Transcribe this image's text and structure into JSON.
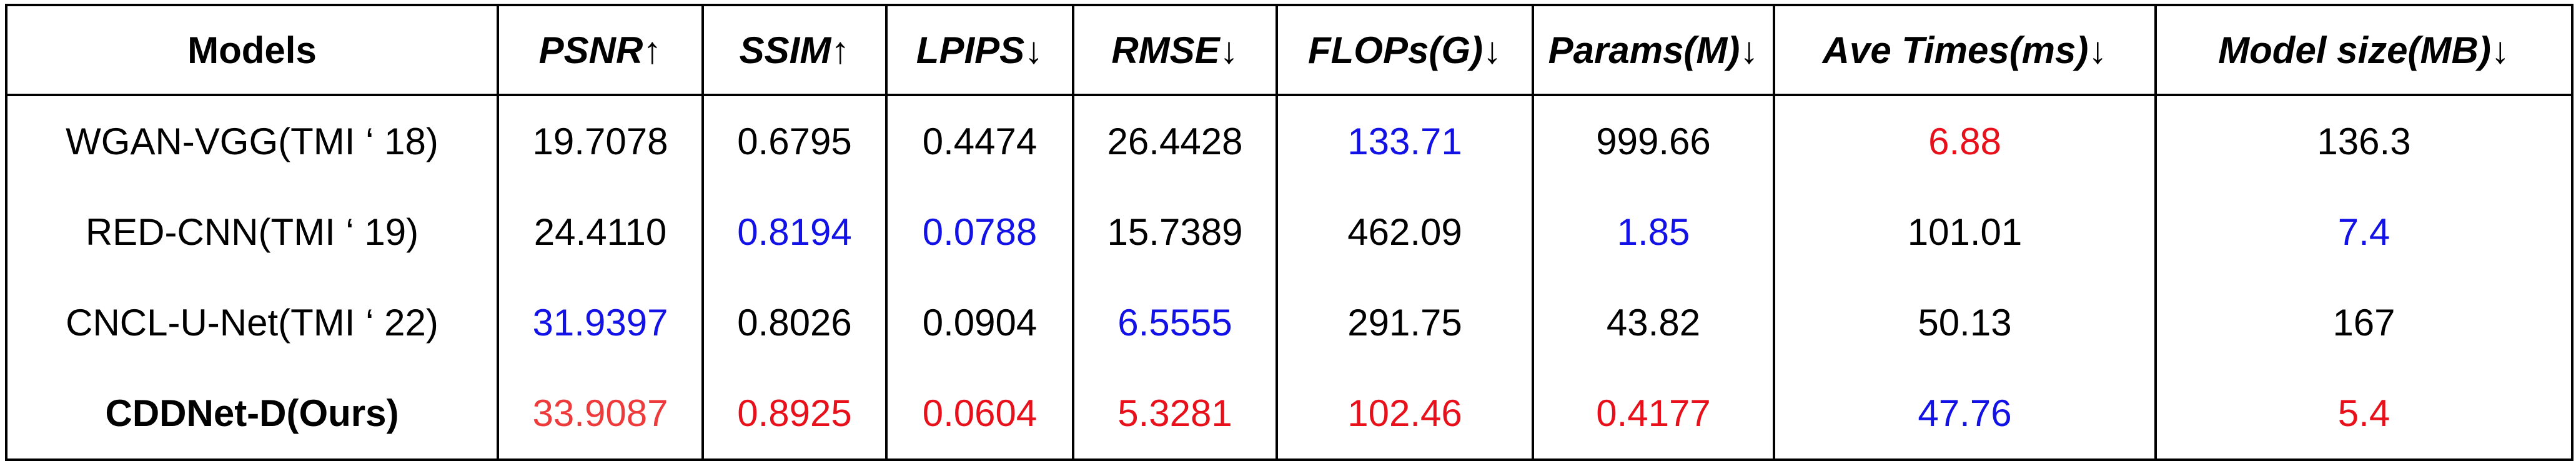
{
  "chart_data": {
    "type": "table",
    "title": "",
    "columns": [
      {
        "label": "Models",
        "italic": false
      },
      {
        "label": "PSNR↑",
        "italic": true
      },
      {
        "label": "SSIM↑",
        "italic": true
      },
      {
        "label": "LPIPS↓",
        "italic": true
      },
      {
        "label": "RMSE↓",
        "italic": true
      },
      {
        "label": "FLOPs(G)↓",
        "italic": true
      },
      {
        "label": "Params(M)↓",
        "italic": true
      },
      {
        "label": "Ave Times(ms)↓",
        "italic": true
      },
      {
        "label": "Model size(MB)↓",
        "italic": true
      }
    ],
    "rows": [
      {
        "model": "WGAN-VGG(TMI ‘ 18)",
        "bold": false,
        "values": [
          "19.7078",
          "0.6795",
          "0.4474",
          "26.4428",
          "133.71",
          "999.66",
          "6.88",
          "136.3"
        ],
        "highlight": [
          "none",
          "none",
          "none",
          "none",
          "blue",
          "none",
          "red",
          "none"
        ]
      },
      {
        "model": "RED-CNN(TMI ‘ 19)",
        "bold": false,
        "values": [
          "24.4110",
          "0.8194",
          "0.0788",
          "15.7389",
          "462.09",
          "1.85",
          "101.01",
          "7.4"
        ],
        "highlight": [
          "none",
          "blue",
          "blue",
          "none",
          "none",
          "blue",
          "none",
          "blue"
        ]
      },
      {
        "model": "CNCL-U-Net(TMI ‘ 22)",
        "bold": false,
        "values": [
          "31.9397",
          "0.8026",
          "0.0904",
          "6.5555",
          "291.75",
          "43.82",
          "50.13",
          "167"
        ],
        "highlight": [
          "blue",
          "none",
          "none",
          "blue",
          "none",
          "none",
          "none",
          "none"
        ]
      },
      {
        "model": "CDDNet-D(Ours)",
        "bold": true,
        "values": [
          "33.9087",
          "0.8925",
          "0.0604",
          "5.3281",
          "102.46",
          "0.4177",
          "47.76",
          "5.4"
        ],
        "highlight": [
          "lightred",
          "red",
          "red",
          "red",
          "red",
          "red",
          "blue",
          "red"
        ]
      }
    ],
    "highlight_colors": {
      "red": "#e8101a",
      "lightred": "#ee3a3a",
      "blue": "#1212e6",
      "none": "#000000"
    }
  }
}
